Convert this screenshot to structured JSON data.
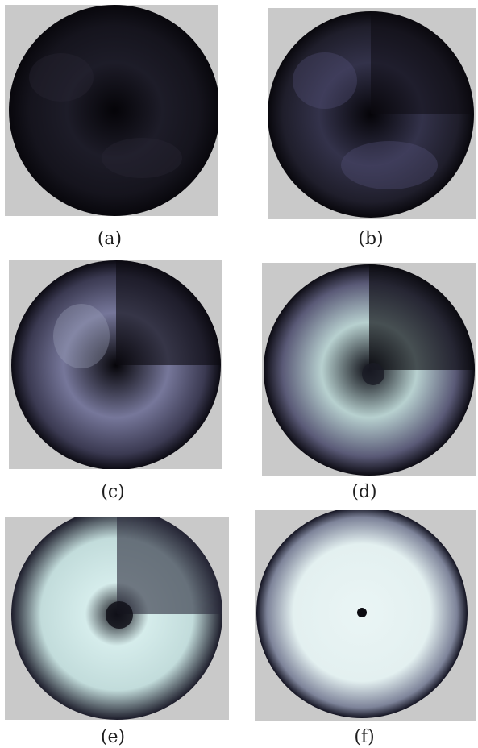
{
  "figure": {
    "panels": [
      {
        "id": "a",
        "caption": "(a)",
        "brightness": 0.08
      },
      {
        "id": "b",
        "caption": "(b)",
        "brightness": 0.22
      },
      {
        "id": "c",
        "caption": "(c)",
        "brightness": 0.4
      },
      {
        "id": "d",
        "caption": "(d)",
        "brightness": 0.62
      },
      {
        "id": "e",
        "caption": "(e)",
        "brightness": 0.85
      },
      {
        "id": "f",
        "caption": "(f)",
        "brightness": 1.0
      }
    ],
    "colors": {
      "background": "#c9c9c9",
      "dark": "#0d0c12",
      "mid": "#4a4a66",
      "light": "#eaf5f5"
    }
  }
}
